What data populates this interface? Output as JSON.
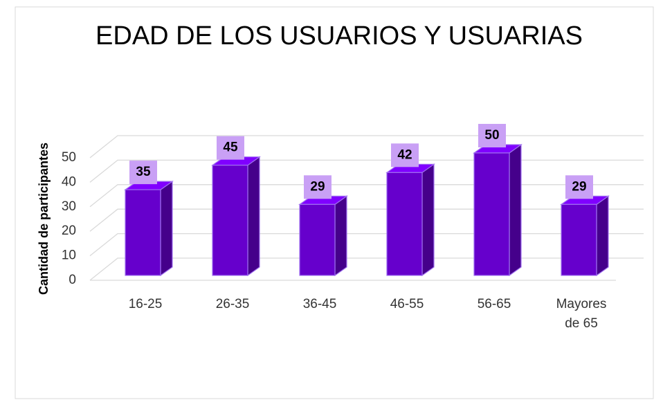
{
  "chart_data": {
    "type": "bar3d",
    "title": "EDAD DE LOS USUARIOS Y USUARIAS",
    "y_label": "Cantidad de participantes",
    "categories": [
      "16-25",
      "26-35",
      "36-45",
      "46-55",
      "56-65",
      "Mayores de 65"
    ],
    "values": [
      35,
      45,
      29,
      42,
      50,
      29
    ],
    "color": "#6600cc",
    "ylim": [
      0,
      50
    ],
    "yticks": [
      0,
      10,
      20,
      30,
      40,
      50
    ],
    "grid": true
  }
}
